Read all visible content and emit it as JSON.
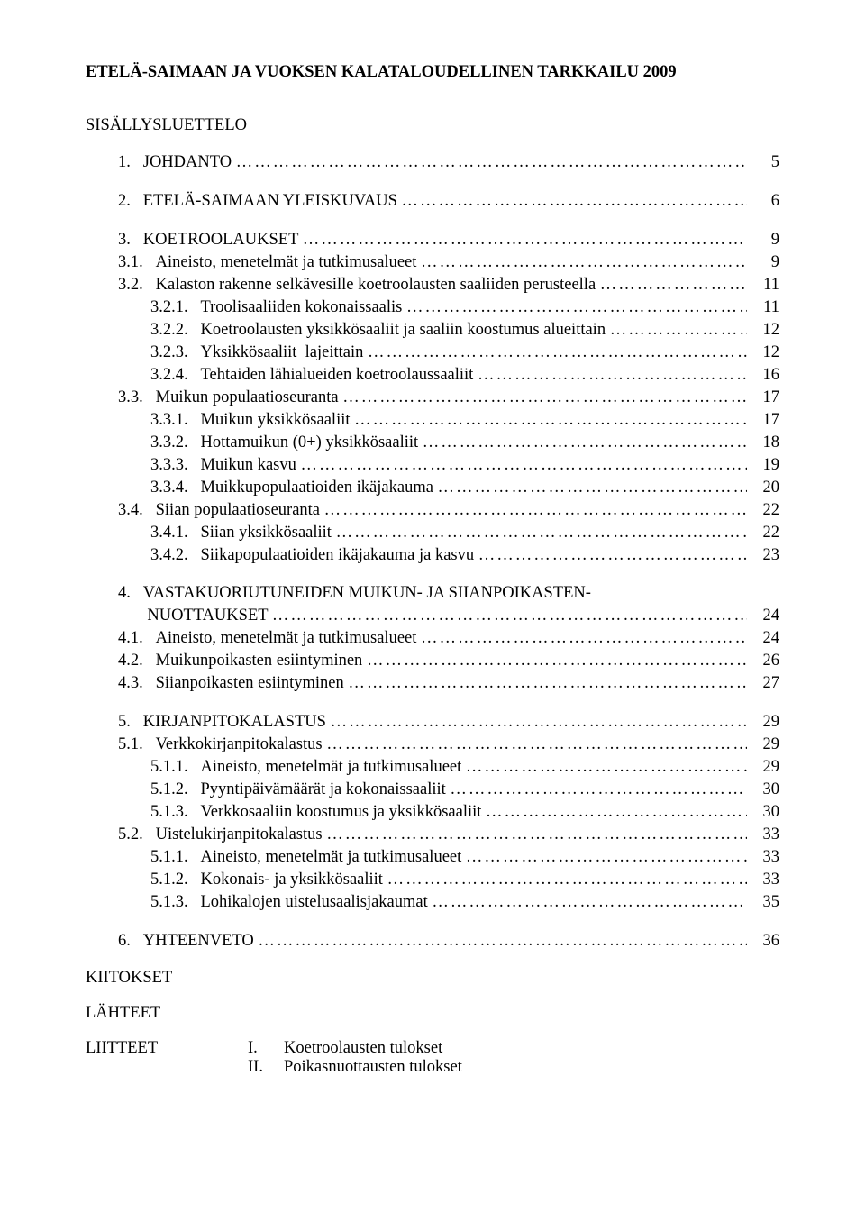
{
  "title": "ETELÄ-SAIMAAN JA VUOKSEN KALATALOUDELLINEN TARKKAILU 2009",
  "toc_heading": "SISÄLLYSLUETTELO",
  "entries": [
    {
      "indent": 1,
      "num": "1.",
      "label": "JOHDANTO",
      "pg": "5",
      "gap_after": true
    },
    {
      "indent": 1,
      "num": "2.",
      "label": "ETELÄ-SAIMAAN YLEISKUVAUS",
      "pg": "6",
      "gap_after": true
    },
    {
      "indent": 1,
      "num": "3.",
      "label": "KOETROOLAUKSET",
      "pg": "9"
    },
    {
      "indent": 2,
      "num": "3.1.",
      "label": "Aineisto, menetelmät ja tutkimusalueet",
      "pg": "9"
    },
    {
      "indent": 2,
      "num": "3.2.",
      "label": "Kalaston rakenne selkävesille koetroolausten saaliiden perusteella",
      "pg": "11"
    },
    {
      "indent": 3,
      "num": "3.2.1.",
      "label": "Troolisaaliiden kokonaissaalis",
      "pg": "11"
    },
    {
      "indent": 3,
      "num": "3.2.2.",
      "label": "Koetroolausten yksikkösaaliit ja saaliin koostumus alueittain",
      "pg": "12"
    },
    {
      "indent": 3,
      "num": "3.2.3.",
      "label": "Yksikkösaaliit  lajeittain",
      "pg": "12"
    },
    {
      "indent": 3,
      "num": "3.2.4.",
      "label": "Tehtaiden lähialueiden koetroolaussaaliit",
      "pg": "16"
    },
    {
      "indent": 2,
      "num": "3.3.",
      "label": "Muikun populaatioseuranta",
      "pg": "17"
    },
    {
      "indent": 3,
      "num": "3.3.1.",
      "label": "Muikun yksikkösaaliit",
      "pg": "17"
    },
    {
      "indent": 3,
      "num": "3.3.2.",
      "label": "Hottamuikun (0+) yksikkösaaliit",
      "pg": "18"
    },
    {
      "indent": 3,
      "num": "3.3.3.",
      "label": "Muikun kasvu",
      "pg": "19"
    },
    {
      "indent": 3,
      "num": "3.3.4.",
      "label": "Muikkupopulaatioiden ikäjakauma",
      "pg": "20"
    },
    {
      "indent": 2,
      "num": "3.4.",
      "label": "Siian populaatioseuranta",
      "pg": "22"
    },
    {
      "indent": 3,
      "num": "3.4.1.",
      "label": "Siian yksikkösaaliit",
      "pg": "22"
    },
    {
      "indent": 3,
      "num": "3.4.2.",
      "label": "Siikapopulaatioiden ikäjakauma ja kasvu",
      "pg": "23",
      "gap_after": true
    },
    {
      "indent": 1,
      "num": "4.",
      "label": "VASTAKUORIUTUNEIDEN MUIKUN- JA SIIANPOIKASTEN-",
      "pg": ""
    },
    {
      "indent": 2,
      "num": "",
      "label": "NUOTTAUKSET",
      "pg": "24"
    },
    {
      "indent": 2,
      "num": "4.1.",
      "label": "Aineisto, menetelmät ja tutkimusalueet",
      "pg": "24"
    },
    {
      "indent": 2,
      "num": "4.2.",
      "label": "Muikunpoikasten esiintyminen",
      "pg": "26"
    },
    {
      "indent": 2,
      "num": "4.3.",
      "label": "Siianpoikasten esiintyminen",
      "pg": "27",
      "gap_after": true
    },
    {
      "indent": 1,
      "num": "5.",
      "label": "KIRJANPITOKALASTUS",
      "pg": "29"
    },
    {
      "indent": 2,
      "num": "5.1.",
      "label": "Verkkokirjanpitokalastus",
      "pg": "29"
    },
    {
      "indent": 3,
      "num": "5.1.1.",
      "label": "Aineisto, menetelmät ja tutkimusalueet",
      "pg": "29"
    },
    {
      "indent": 3,
      "num": "5.1.2.",
      "label": "Pyyntipäivämäärät ja kokonaissaaliit",
      "pg": "30"
    },
    {
      "indent": 3,
      "num": "5.1.3.",
      "label": "Verkkosaaliin koostumus ja yksikkösaaliit",
      "pg": "30"
    },
    {
      "indent": 2,
      "num": "5.2.",
      "label": "Uistelukirjanpitokalastus",
      "pg": "33"
    },
    {
      "indent": 3,
      "num": "5.1.1.",
      "label": "Aineisto, menetelmät ja tutkimusalueet",
      "pg": "33"
    },
    {
      "indent": 3,
      "num": "5.1.2.",
      "label": "Kokonais- ja yksikkösaaliit",
      "pg": "33"
    },
    {
      "indent": 3,
      "num": "5.1.3.",
      "label": "Lohikalojen uistelusaalisjakaumat",
      "pg": "35",
      "gap_after": true
    },
    {
      "indent": 1,
      "num": "6.",
      "label": "YHTEENVETO",
      "pg": "36"
    }
  ],
  "footer": {
    "kiitokset": "KIITOKSET",
    "lahteet": "LÄHTEET",
    "liitteet": "LIITTEET",
    "appendix": [
      {
        "roman": "I.",
        "text": "Koetroolausten tulokset"
      },
      {
        "roman": "II.",
        "text": "Poikasnuottausten tulokset"
      }
    ]
  }
}
